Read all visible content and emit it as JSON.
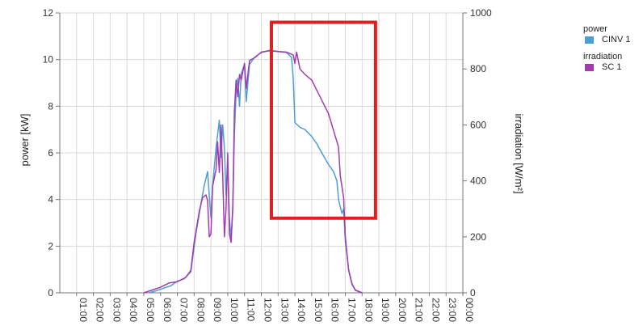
{
  "chart_data": {
    "type": "line",
    "x_unit": "hour of day",
    "x_tick_labels": [
      "01:00",
      "02:00",
      "03:00",
      "04:00",
      "05:00",
      "06:00",
      "07:00",
      "08:00",
      "09:00",
      "10:00",
      "11:00",
      "12:00",
      "13:00",
      "14:00",
      "15:00",
      "16:00",
      "17:00",
      "18:00",
      "19:00",
      "20:00",
      "21:00",
      "22:00",
      "23:00",
      "00:00"
    ],
    "xlim": [
      0,
      24
    ],
    "y_left": {
      "label": "power [kW]",
      "lim": [
        0,
        12
      ],
      "ticks": [
        "0",
        "2",
        "4",
        "6",
        "8",
        "10",
        "12"
      ]
    },
    "y_right": {
      "label": "irradiation [W/m²]",
      "lim": [
        0,
        1000
      ],
      "ticks": [
        "0",
        "200",
        "400",
        "600",
        "800",
        "1000"
      ]
    },
    "grid": true,
    "legend_position": "top-right",
    "legend_groups": [
      {
        "title": "power",
        "entries": [
          {
            "name": "CINV 1",
            "color": "#4a9fd4"
          }
        ]
      },
      {
        "title": "irradiation",
        "entries": [
          {
            "name": "SC 1",
            "color": "#a33bb0"
          }
        ]
      }
    ],
    "series": [
      {
        "name": "CINV 1",
        "axis": "left",
        "color": "#4a9fd4",
        "points": [
          [
            5.3,
            0
          ],
          [
            5.8,
            0.1
          ],
          [
            6.2,
            0.2
          ],
          [
            6.6,
            0.3
          ],
          [
            7.0,
            0.5
          ],
          [
            7.4,
            0.6
          ],
          [
            7.8,
            0.9
          ],
          [
            8.1,
            2.5
          ],
          [
            8.4,
            3.8
          ],
          [
            8.6,
            4.6
          ],
          [
            8.8,
            5.2
          ],
          [
            8.9,
            4.2
          ],
          [
            9.0,
            3.2
          ],
          [
            9.1,
            4.6
          ],
          [
            9.3,
            6.2
          ],
          [
            9.5,
            7.4
          ],
          [
            9.6,
            5.8
          ],
          [
            9.7,
            7.2
          ],
          [
            9.8,
            6.2
          ],
          [
            9.9,
            4.2
          ],
          [
            10.0,
            5.6
          ],
          [
            10.1,
            3.2
          ],
          [
            10.2,
            2.3
          ],
          [
            10.3,
            3.6
          ],
          [
            10.4,
            6.8
          ],
          [
            10.5,
            8.6
          ],
          [
            10.6,
            9.2
          ],
          [
            10.7,
            8.0
          ],
          [
            10.8,
            9.4
          ],
          [
            11.0,
            9.8
          ],
          [
            11.1,
            8.2
          ],
          [
            11.3,
            9.8
          ],
          [
            11.6,
            10.1
          ],
          [
            12.0,
            10.3
          ],
          [
            12.5,
            10.4
          ],
          [
            13.0,
            10.35
          ],
          [
            13.5,
            10.3
          ],
          [
            13.8,
            10.1
          ],
          [
            13.9,
            9.2
          ],
          [
            14.0,
            7.3
          ],
          [
            14.3,
            7.1
          ],
          [
            14.6,
            7.0
          ],
          [
            15.0,
            6.7
          ],
          [
            15.3,
            6.4
          ],
          [
            15.6,
            6.0
          ],
          [
            16.0,
            5.5
          ],
          [
            16.3,
            5.2
          ],
          [
            16.5,
            4.8
          ],
          [
            16.6,
            4.0
          ],
          [
            16.7,
            3.7
          ],
          [
            16.8,
            3.4
          ],
          [
            16.9,
            3.6
          ],
          [
            17.0,
            2.2
          ],
          [
            17.2,
            1.0
          ],
          [
            17.4,
            0.4
          ],
          [
            17.6,
            0.1
          ],
          [
            18.0,
            0
          ]
        ]
      },
      {
        "name": "SC 1",
        "axis": "right",
        "color": "#a33bb0",
        "points": [
          [
            5.0,
            0
          ],
          [
            5.5,
            10
          ],
          [
            6.0,
            20
          ],
          [
            6.5,
            35
          ],
          [
            7.0,
            40
          ],
          [
            7.5,
            55
          ],
          [
            7.8,
            80
          ],
          [
            8.0,
            180
          ],
          [
            8.3,
            290
          ],
          [
            8.5,
            340
          ],
          [
            8.7,
            350
          ],
          [
            8.8,
            330
          ],
          [
            8.9,
            200
          ],
          [
            9.0,
            210
          ],
          [
            9.1,
            380
          ],
          [
            9.3,
            440
          ],
          [
            9.4,
            540
          ],
          [
            9.5,
            430
          ],
          [
            9.6,
            600
          ],
          [
            9.7,
            420
          ],
          [
            9.8,
            200
          ],
          [
            9.9,
            300
          ],
          [
            10.0,
            500
          ],
          [
            10.1,
            210
          ],
          [
            10.2,
            180
          ],
          [
            10.3,
            310
          ],
          [
            10.4,
            650
          ],
          [
            10.5,
            760
          ],
          [
            10.6,
            700
          ],
          [
            10.7,
            780
          ],
          [
            10.8,
            760
          ],
          [
            11.0,
            820
          ],
          [
            11.1,
            730
          ],
          [
            11.3,
            830
          ],
          [
            11.6,
            840
          ],
          [
            12.0,
            860
          ],
          [
            12.5,
            865
          ],
          [
            13.0,
            862
          ],
          [
            13.5,
            860
          ],
          [
            13.7,
            855
          ],
          [
            13.9,
            850
          ],
          [
            14.0,
            820
          ],
          [
            14.1,
            860
          ],
          [
            14.3,
            800
          ],
          [
            14.6,
            780
          ],
          [
            15.0,
            760
          ],
          [
            15.5,
            700
          ],
          [
            16.0,
            640
          ],
          [
            16.3,
            580
          ],
          [
            16.5,
            540
          ],
          [
            16.6,
            520
          ],
          [
            16.7,
            420
          ],
          [
            16.8,
            380
          ],
          [
            16.9,
            340
          ],
          [
            17.0,
            200
          ],
          [
            17.2,
            80
          ],
          [
            17.4,
            30
          ],
          [
            17.6,
            10
          ],
          [
            18.0,
            0
          ]
        ]
      }
    ],
    "annotations": [
      {
        "type": "highlight-rectangle",
        "color": "#e02020",
        "x_range": [
          12.6,
          18.8
        ],
        "y_left_range": [
          3.2,
          11.6
        ]
      }
    ]
  }
}
